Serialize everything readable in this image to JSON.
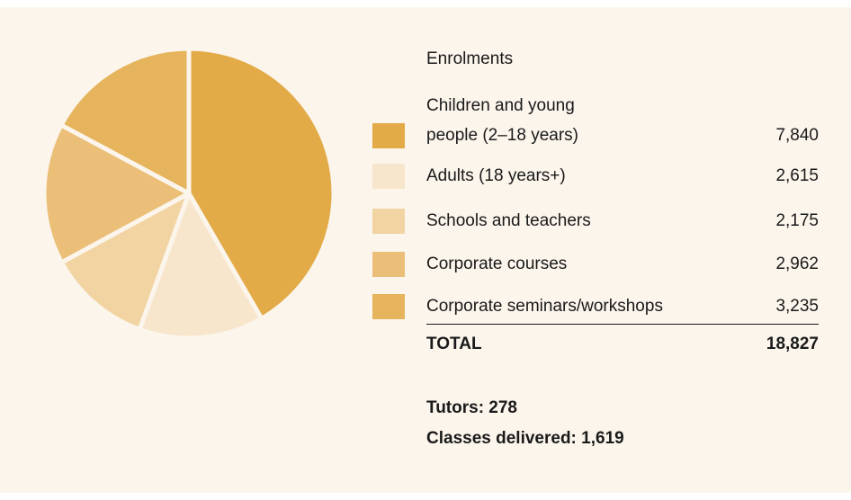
{
  "chart_data": {
    "type": "pie",
    "title": "Enrolments",
    "categories": [
      "Children and young\npeople (2–18 years)",
      "Adults (18 years+)",
      "Schools and teachers",
      "Corporate courses",
      "Corporate seminars/workshops"
    ],
    "values": [
      7840,
      2615,
      2175,
      2962,
      3235
    ],
    "value_labels": [
      "7,840",
      "2,615",
      "2,175",
      "2,962",
      "3,235"
    ],
    "colors": [
      "#e3ab47",
      "#f8e6cc",
      "#f2d4a3",
      "#ebbf78",
      "#e6b45c"
    ],
    "total_label": "TOTAL",
    "total": "18,827",
    "notes": [
      "Tutors: 278",
      "Classes delivered: 1,619"
    ]
  }
}
